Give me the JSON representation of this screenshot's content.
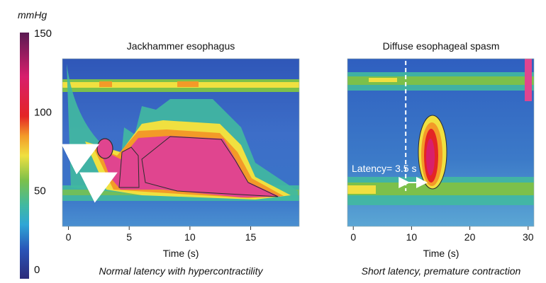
{
  "chart_data": [
    {
      "type": "heatmap",
      "title": "Jackhammer esophagus",
      "caption": "Normal latency with hypercontractility",
      "xlabel": "Time (s)",
      "xlim": [
        -0.5,
        19
      ],
      "xticks": [
        0,
        5,
        10,
        15
      ],
      "colorbar": {
        "unit": "mmHg",
        "range": [
          0,
          150
        ],
        "ticks": [
          0,
          50,
          100,
          150
        ]
      },
      "annotations": [
        {
          "type": "arrow",
          "target_x_s": 2.5
        },
        {
          "type": "arrow",
          "target_x_s": 4.0
        }
      ]
    },
    {
      "type": "heatmap",
      "title": "Diffuse esophageal spasm",
      "caption": "Short latency, premature contraction",
      "xlabel": "Time (s)",
      "xlim": [
        -1,
        31
      ],
      "xticks": [
        0,
        10,
        20,
        30
      ],
      "annotations": [
        {
          "type": "latency",
          "label": "Latency= 3.5 s",
          "start_s": 9,
          "end_s": 12.5
        }
      ]
    }
  ],
  "colors": {
    "scale": [
      "#2c2b7a",
      "#2a55b8",
      "#2fa6d6",
      "#41b9a0",
      "#7cc04a",
      "#f0e040",
      "#f39a28",
      "#e42525",
      "#d81f6c",
      "#5a1a52"
    ],
    "background": "#3a62c2",
    "peak": "#e0458f"
  }
}
